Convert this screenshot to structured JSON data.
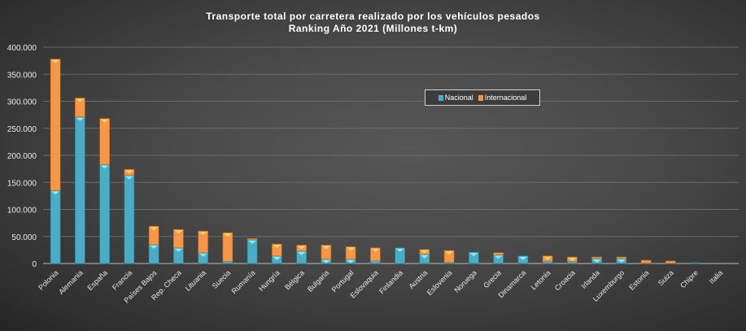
{
  "chart_data": {
    "type": "bar",
    "stacked": true,
    "title": "Transporte  total por carretera  realizado  por los vehículos  pesados",
    "subtitle": "Ranking  Año 2021 (Millones  t-km)",
    "xlabel": "",
    "ylabel": "",
    "ylim": [
      0,
      400000
    ],
    "yticks": [
      0,
      50000,
      100000,
      150000,
      200000,
      250000,
      300000,
      350000,
      400000
    ],
    "ytick_labels": [
      "0",
      "50.000",
      "100.000",
      "150.000",
      "200.000",
      "250.000",
      "300.000",
      "350.000",
      "400.000"
    ],
    "grid": true,
    "legend_position": "top-right",
    "categories": [
      "Polonia",
      "Alemania",
      "España",
      "Francia",
      "Países Bajos",
      "Rep. Checa",
      "Lituania",
      "Suecia",
      "Rumanía",
      "Hungría",
      "Bélgica",
      "Bulgaria",
      "Portugal",
      "Eslovaquia",
      "Finlandia",
      "Austria",
      "Eslovenia",
      "Noruega",
      "Grecia",
      "Dinamarca",
      "Letonia",
      "Croacia",
      "Irlanda",
      "Luxemburgo",
      "Estonia",
      "Suiza",
      "Chipre",
      "Italia"
    ],
    "series": [
      {
        "name": "Nacional",
        "color": "#4bacc6",
        "values": [
          135000,
          271000,
          183000,
          163000,
          35000,
          29000,
          20000,
          4000,
          44000,
          14000,
          23000,
          8000,
          8000,
          5000,
          29000,
          17000,
          2000,
          21000,
          16000,
          14000,
          4000,
          4000,
          9000,
          9000,
          500,
          500,
          1500,
          0
        ]
      },
      {
        "name": "Internacional",
        "color": "#f79646",
        "values": [
          243000,
          35000,
          85000,
          11000,
          34000,
          34000,
          40000,
          53000,
          2000,
          22000,
          11000,
          26000,
          23000,
          24000,
          0,
          9000,
          22000,
          0,
          4000,
          0,
          10000,
          8000,
          3000,
          3000,
          5500,
          4100,
          0,
          0
        ]
      }
    ]
  }
}
